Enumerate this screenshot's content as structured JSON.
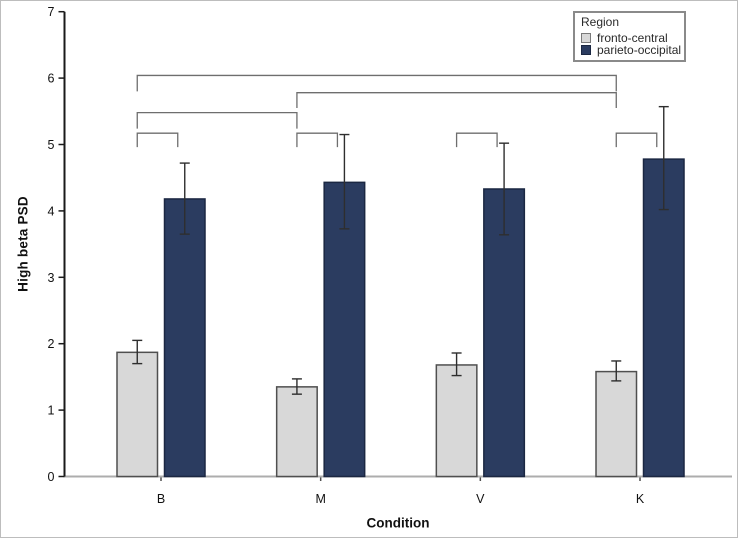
{
  "chart_data": {
    "type": "bar",
    "title": "",
    "xlabel": "Condition",
    "ylabel": "High beta PSD",
    "categories": [
      "B",
      "M",
      "V",
      "K"
    ],
    "series": [
      {
        "name": "fronto-central",
        "fill": "#d8d8d8",
        "stroke": "#4f4f4f",
        "values": [
          1.87,
          1.35,
          1.68,
          1.58
        ],
        "err_low": [
          1.7,
          1.24,
          1.52,
          1.44
        ],
        "err_high": [
          2.05,
          1.47,
          1.86,
          1.74
        ]
      },
      {
        "name": "parieto-occipital",
        "fill": "#2b3c60",
        "stroke": "#1b2742",
        "values": [
          4.18,
          4.43,
          4.33,
          4.78
        ],
        "err_low": [
          3.65,
          3.73,
          3.64,
          4.02
        ],
        "err_high": [
          4.72,
          5.15,
          5.02,
          5.57
        ]
      }
    ],
    "ylim": [
      0,
      7
    ],
    "yticks": [
      0,
      1,
      2,
      3,
      4,
      5,
      6,
      7
    ],
    "grid": false,
    "legend": {
      "title": "Region",
      "position": "top-right"
    },
    "brackets": [
      {
        "cat1": 0,
        "series1": 0,
        "cat2": 3,
        "series2": 0,
        "y": 6.04,
        "drop": 0.24
      },
      {
        "cat1": 1,
        "series1": 0,
        "cat2": 3,
        "series2": 0,
        "y": 5.78,
        "drop": 0.23
      },
      {
        "cat1": 0,
        "series1": 0,
        "cat2": 1,
        "series2": 0,
        "y": 5.48,
        "drop": 0.24
      },
      {
        "cat1": 0,
        "series1": 0,
        "cat2": 0,
        "series2": 1,
        "y": 5.17,
        "drop": 0.21,
        "nudge2": -7
      },
      {
        "cat1": 1,
        "series1": 0,
        "cat2": 1,
        "series2": 1,
        "y": 5.17,
        "drop": 0.21,
        "nudge2": -7
      },
      {
        "cat1": 2,
        "series1": 0,
        "cat2": 2,
        "series2": 1,
        "y": 5.17,
        "drop": 0.21,
        "nudge2": -7
      },
      {
        "cat1": 3,
        "series1": 0,
        "cat2": 3,
        "series2": 1,
        "y": 5.17,
        "drop": 0.21,
        "nudge2": -7
      }
    ],
    "colors": {
      "error_bar": "#2e2e2e",
      "bracket": "#6e6e6e",
      "y_axis": "#1a1a1a",
      "x_axis": "#adadad",
      "x_tick": "#4d4d4d",
      "text": "#111111"
    }
  }
}
